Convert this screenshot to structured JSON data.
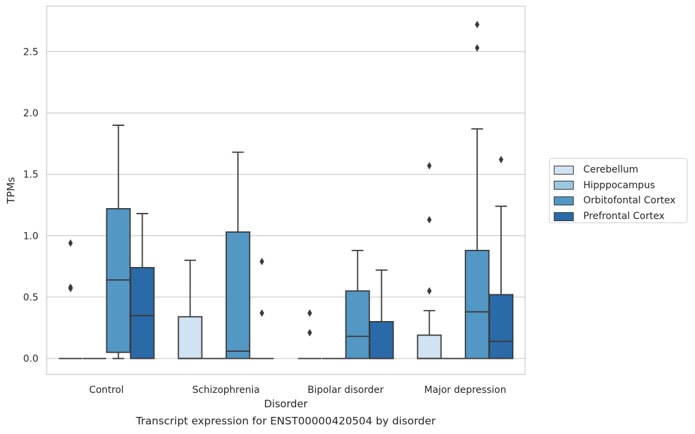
{
  "chart_data": {
    "type": "box",
    "xlabel": "Disorder",
    "ylabel": "TPMs",
    "caption": "Transcript expression for ENST00000420504 by disorder",
    "ylim": [
      -0.13,
      2.87
    ],
    "yticks": [
      "0.0",
      "0.5",
      "1.0",
      "1.5",
      "2.0",
      "2.5"
    ],
    "grid": "horizontal",
    "legend_position": "right",
    "categories": [
      "Control",
      "Schizophrenia",
      "Bipolar disorder",
      "Major depression"
    ],
    "series": [
      {
        "name": "Cerebellum",
        "color": "#d1e2f2",
        "boxes": [
          {
            "min": 0,
            "q1": 0,
            "median": 0,
            "q3": 0,
            "max": 0,
            "outliers": [
              0.94,
              0.58,
              0.57
            ]
          },
          {
            "min": 0,
            "q1": 0,
            "median": 0,
            "q3": 0.34,
            "max": 0.8,
            "outliers": []
          },
          {
            "min": 0,
            "q1": 0,
            "median": 0,
            "q3": 0,
            "max": 0,
            "outliers": [
              0.37,
              0.21
            ]
          },
          {
            "min": 0,
            "q1": 0,
            "median": 0,
            "q3": 0.19,
            "max": 0.39,
            "outliers": [
              1.57,
              1.13,
              0.55
            ]
          }
        ]
      },
      {
        "name": "Hipppocampus",
        "color": "#9ac8e0",
        "boxes": [
          {
            "min": 0,
            "q1": 0,
            "median": 0,
            "q3": 0,
            "max": 0,
            "outliers": []
          },
          {
            "min": 0,
            "q1": 0,
            "median": 0,
            "q3": 0,
            "max": 0,
            "outliers": []
          },
          {
            "min": 0,
            "q1": 0,
            "median": 0,
            "q3": 0,
            "max": 0,
            "outliers": []
          },
          {
            "min": 0,
            "q1": 0,
            "median": 0,
            "q3": 0,
            "max": 0,
            "outliers": []
          }
        ]
      },
      {
        "name": "Orbitofontal Cortex",
        "color": "#5397c5",
        "boxes": [
          {
            "min": 0,
            "q1": 0.05,
            "median": 0.64,
            "q3": 1.22,
            "max": 1.9,
            "outliers": []
          },
          {
            "min": 0,
            "q1": 0,
            "median": 0.06,
            "q3": 1.03,
            "max": 1.68,
            "outliers": []
          },
          {
            "min": 0,
            "q1": 0,
            "median": 0.18,
            "q3": 0.55,
            "max": 0.88,
            "outliers": []
          },
          {
            "min": 0,
            "q1": 0,
            "median": 0.38,
            "q3": 0.88,
            "max": 1.87,
            "outliers": [
              2.72,
              2.53
            ]
          }
        ]
      },
      {
        "name": "Prefrontal Cortex",
        "color": "#2b6aa8",
        "boxes": [
          {
            "min": 0,
            "q1": 0,
            "median": 0.35,
            "q3": 0.74,
            "max": 1.18,
            "outliers": []
          },
          {
            "min": 0,
            "q1": 0,
            "median": 0,
            "q3": 0,
            "max": 0,
            "outliers": [
              0.79,
              0.37
            ]
          },
          {
            "min": 0,
            "q1": 0,
            "median": 0,
            "q3": 0.3,
            "max": 0.72,
            "outliers": []
          },
          {
            "min": 0,
            "q1": 0,
            "median": 0.14,
            "q3": 0.52,
            "max": 1.24,
            "outliers": [
              1.62
            ]
          }
        ]
      }
    ]
  }
}
